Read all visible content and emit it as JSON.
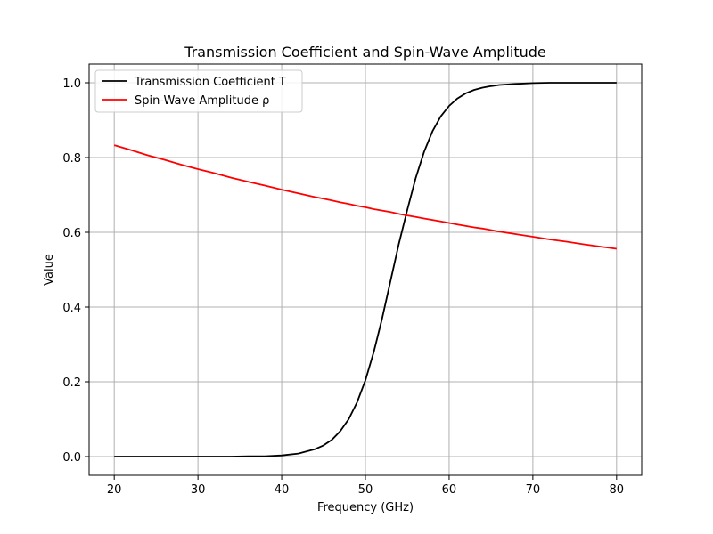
{
  "chart_data": {
    "type": "line",
    "title": "Transmission Coefficient and Spin-Wave Amplitude",
    "xlabel": "Frequency (GHz)",
    "ylabel": "Value",
    "xlim": [
      17,
      83
    ],
    "ylim": [
      -0.05,
      1.05
    ],
    "xticks": [
      20,
      30,
      40,
      50,
      60,
      70,
      80
    ],
    "yticks": [
      0.0,
      0.2,
      0.4,
      0.6,
      0.8,
      1.0
    ],
    "xtick_labels": [
      "20",
      "30",
      "40",
      "50",
      "60",
      "70",
      "80"
    ],
    "ytick_labels": [
      "0.0",
      "0.2",
      "0.4",
      "0.6",
      "0.8",
      "1.0"
    ],
    "grid": true,
    "legend": "top-left",
    "x": [
      20,
      22,
      24,
      26,
      28,
      30,
      32,
      34,
      36,
      38,
      40,
      42,
      44,
      45,
      46,
      47,
      48,
      49,
      50,
      51,
      52,
      53,
      54,
      55,
      56,
      57,
      58,
      59,
      60,
      61,
      62,
      63,
      64,
      65,
      66,
      68,
      70,
      72,
      74,
      76,
      78,
      80
    ],
    "series": [
      {
        "name": "Transmission Coefficient T",
        "color": "#000000",
        "values": [
          0.0,
          0.0,
          0.0,
          0.0,
          0.0,
          0.0,
          0.0,
          0.0,
          0.001,
          0.001,
          0.003,
          0.008,
          0.02,
          0.03,
          0.045,
          0.068,
          0.1,
          0.145,
          0.204,
          0.28,
          0.37,
          0.47,
          0.57,
          0.66,
          0.745,
          0.815,
          0.87,
          0.91,
          0.938,
          0.958,
          0.972,
          0.981,
          0.987,
          0.991,
          0.994,
          0.997,
          0.999,
          1.0,
          1.0,
          1.0,
          1.0,
          1.0
        ]
      },
      {
        "name": "Spin-Wave Amplitude ρ",
        "color": "#ff0000",
        "values": [
          0.833,
          0.82,
          0.806,
          0.794,
          0.781,
          0.769,
          0.758,
          0.746,
          0.735,
          0.725,
          0.714,
          0.704,
          0.694,
          0.69,
          0.685,
          0.68,
          0.676,
          0.671,
          0.667,
          0.662,
          0.658,
          0.654,
          0.649,
          0.645,
          0.641,
          0.637,
          0.633,
          0.629,
          0.625,
          0.621,
          0.617,
          0.613,
          0.61,
          0.606,
          0.602,
          0.595,
          0.588,
          0.581,
          0.575,
          0.568,
          0.562,
          0.556
        ]
      }
    ]
  }
}
